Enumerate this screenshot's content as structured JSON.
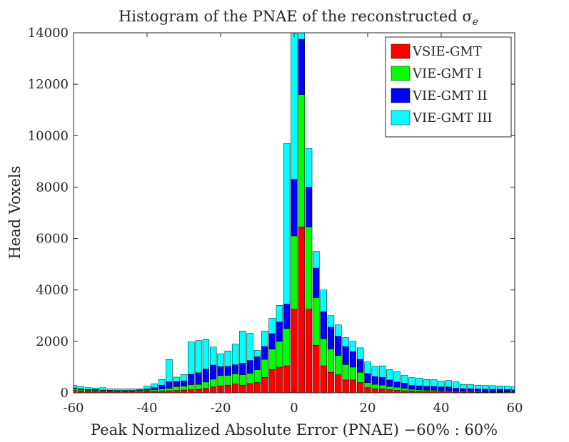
{
  "chart_data": {
    "type": "bar",
    "stacked": true,
    "title": "Histogram of the PNAE of the reconstructed σ",
    "title_subscript": "e",
    "xlabel": "Peak Normalized Absolute Error (PNAE) −60% : 60%",
    "ylabel": "Head Voxels",
    "xlim": [
      -60,
      60
    ],
    "ylim": [
      0,
      14000
    ],
    "xticks": [
      -60,
      -40,
      -20,
      0,
      20,
      40,
      60
    ],
    "xtick_labels": [
      "-60",
      "-40",
      "-20",
      "0",
      "20",
      "40",
      "60"
    ],
    "yticks": [
      0,
      2000,
      4000,
      6000,
      8000,
      10000,
      12000,
      14000
    ],
    "ytick_labels": [
      "0",
      "2000",
      "4000",
      "6000",
      "8000",
      "10000",
      "12000",
      "14000"
    ],
    "bin_width": 2,
    "x": [
      -60,
      -58,
      -56,
      -54,
      -52,
      -50,
      -48,
      -46,
      -44,
      -42,
      -40,
      -38,
      -36,
      -34,
      -32,
      -30,
      -28,
      -26,
      -24,
      -22,
      -20,
      -18,
      -16,
      -14,
      -12,
      -10,
      -8,
      -6,
      -4,
      -2,
      0,
      2,
      4,
      6,
      8,
      10,
      12,
      14,
      16,
      18,
      20,
      22,
      24,
      26,
      28,
      30,
      32,
      34,
      36,
      38,
      40,
      42,
      44,
      46,
      48,
      50,
      52,
      54,
      56,
      58,
      60
    ],
    "legend_position": "top-right",
    "series": [
      {
        "name": "VSIE-GMT",
        "color": "#ff0000",
        "values": [
          100,
          80,
          60,
          60,
          60,
          50,
          40,
          40,
          40,
          50,
          50,
          60,
          70,
          80,
          90,
          110,
          120,
          130,
          170,
          230,
          270,
          300,
          340,
          300,
          360,
          400,
          600,
          900,
          1000,
          1050,
          3250,
          6450,
          3250,
          1850,
          1050,
          800,
          700,
          500,
          500,
          400,
          200,
          150,
          150,
          120,
          100,
          80,
          70,
          60,
          50,
          50,
          40,
          40,
          30,
          30,
          30,
          20,
          20,
          20,
          20,
          10,
          10
        ]
      },
      {
        "name": "VIE-GMT I",
        "color": "#00ff00",
        "values": [
          50,
          40,
          40,
          40,
          30,
          30,
          30,
          30,
          30,
          40,
          50,
          60,
          80,
          100,
          150,
          150,
          200,
          200,
          250,
          300,
          400,
          380,
          400,
          400,
          400,
          500,
          700,
          800,
          1000,
          1450,
          2850,
          5150,
          3200,
          1850,
          1050,
          900,
          750,
          600,
          500,
          400,
          200,
          180,
          150,
          130,
          120,
          100,
          70,
          60,
          50,
          50,
          40,
          40,
          30,
          30,
          30,
          30,
          20,
          20,
          20,
          20,
          20
        ]
      },
      {
        "name": "VIE-GMT II",
        "color": "#0000ff",
        "values": [
          40,
          30,
          30,
          30,
          20,
          20,
          20,
          20,
          20,
          30,
          50,
          80,
          150,
          250,
          200,
          200,
          400,
          450,
          500,
          550,
          350,
          350,
          350,
          450,
          500,
          500,
          500,
          600,
          750,
          950,
          2200,
          2150,
          1550,
          1150,
          1050,
          850,
          750,
          700,
          600,
          500,
          350,
          300,
          300,
          250,
          200,
          200,
          150,
          150,
          150,
          150,
          150,
          150,
          120,
          100,
          100,
          100,
          100,
          100,
          100,
          100,
          80
        ]
      },
      {
        "name": "VIE-GMT III",
        "color": "#00ffff",
        "values": [
          110,
          100,
          70,
          60,
          90,
          50,
          60,
          60,
          60,
          30,
          110,
          150,
          220,
          870,
          170,
          250,
          1260,
          1250,
          1150,
          700,
          500,
          600,
          800,
          1250,
          1050,
          250,
          600,
          600,
          650,
          6250,
          5850,
          550,
          1500,
          650,
          850,
          450,
          440,
          350,
          400,
          450,
          450,
          400,
          450,
          400,
          400,
          300,
          300,
          300,
          270,
          260,
          220,
          250,
          250,
          170,
          170,
          150,
          150,
          140,
          130,
          130,
          120
        ]
      }
    ]
  }
}
